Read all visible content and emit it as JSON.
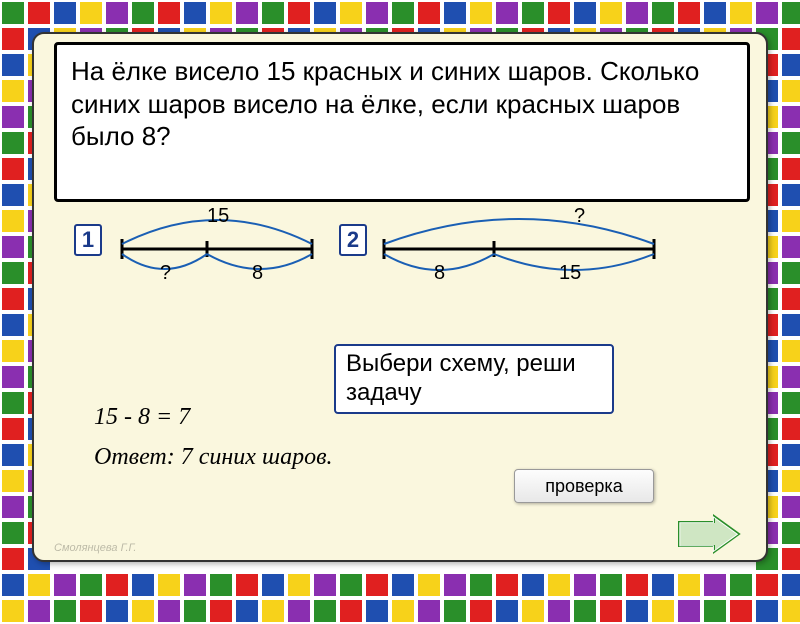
{
  "border": {
    "tile_size": 26,
    "colors": [
      "#2a8f2a",
      "#e02020",
      "#1f4fb0",
      "#f7d21a",
      "#8a2fb0"
    ],
    "inner_border": "#fff"
  },
  "card": {
    "bg": "#faf7de"
  },
  "problem": {
    "text": "На ёлке висело 15 красных и синих шаров. Сколько\n синих шаров висело на ёлке, если красных шаров\nбыло 8?"
  },
  "diagrams": {
    "one": {
      "badge": "1",
      "total_label": "15",
      "left_label": "?",
      "right_label": "8"
    },
    "two": {
      "badge": "2",
      "total_label": "?",
      "left_label": "8",
      "right_label": "15"
    },
    "arc_color": "#1a5fb4"
  },
  "prompt": "Выбери схему, реши задачу",
  "solution": "15 - 8 = 7",
  "answer": "Ответ:  7 синих шаров.",
  "check_button": "проверка",
  "credit": "Смолянцева Г.Г."
}
